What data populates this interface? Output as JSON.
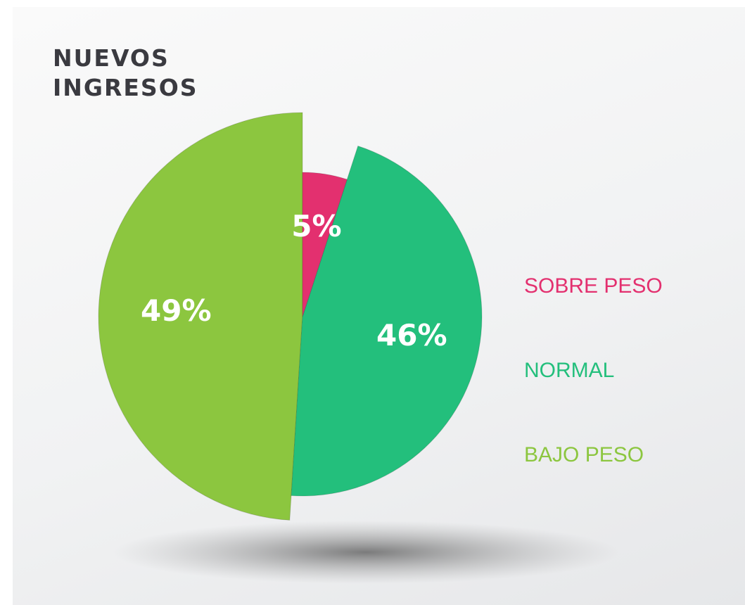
{
  "chart_data": {
    "type": "pie",
    "title": "NUEVOS INGRESOS",
    "categories": [
      "SOBRE PESO",
      "NORMAL",
      "BAJO PESO"
    ],
    "values": [
      5,
      46,
      49
    ],
    "value_labels": [
      "5%",
      "46%",
      "49%"
    ],
    "colors": [
      "#e3306f",
      "#23bf7c",
      "#8cc63f"
    ]
  }
}
